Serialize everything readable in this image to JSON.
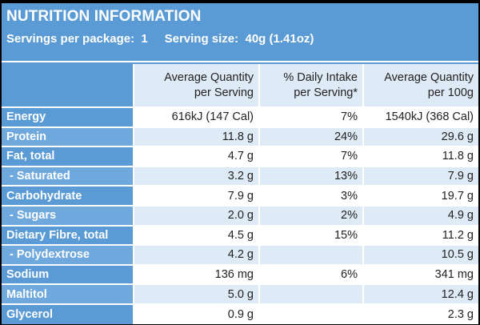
{
  "title": "NUTRITION INFORMATION",
  "servings": {
    "per_package_label": "Servings per package:",
    "per_package_value": "1",
    "size_label": "Serving size:",
    "size_value": "40g (1.41oz)"
  },
  "columns": [
    {
      "line1": "Average Quantity",
      "line2": "per Serving"
    },
    {
      "line1": "% Daily Intake",
      "line2": "per Serving*"
    },
    {
      "line1": "Average Quantity",
      "line2": "per 100g"
    }
  ],
  "rows": [
    {
      "label": "Energy",
      "per_serving": "616kJ (147 Cal)",
      "daily_intake": "7%",
      "per_100g": "1540kJ (368 Cal)"
    },
    {
      "label": "Protein",
      "per_serving": "11.8 g",
      "daily_intake": "24%",
      "per_100g": "29.6 g"
    },
    {
      "label": "Fat, total",
      "per_serving": "4.7 g",
      "daily_intake": "7%",
      "per_100g": "11.8 g"
    },
    {
      "label": " - Saturated",
      "per_serving": "3.2 g",
      "daily_intake": "13%",
      "per_100g": "7.9 g"
    },
    {
      "label": "Carbohydrate",
      "per_serving": "7.9 g",
      "daily_intake": "3%",
      "per_100g": "19.7 g"
    },
    {
      "label": " - Sugars",
      "per_serving": "2.0 g",
      "daily_intake": "2%",
      "per_100g": "4.9 g"
    },
    {
      "label": "Dietary Fibre, total",
      "per_serving": "4.5 g",
      "daily_intake": "15%",
      "per_100g": "11.2 g"
    },
    {
      "label": " - Polydextrose",
      "per_serving": "4.2 g",
      "daily_intake": "",
      "per_100g": "10.5 g"
    },
    {
      "label": "Sodium",
      "per_serving": "136 mg",
      "daily_intake": "6%",
      "per_100g": "341 mg"
    },
    {
      "label": "Maltitol",
      "per_serving": "5.0 g",
      "daily_intake": "",
      "per_100g": "12.4 g"
    },
    {
      "label": "Glycerol",
      "per_serving": "0.9 g",
      "daily_intake": "",
      "per_100g": "2.3 g"
    }
  ],
  "colors": {
    "header_blue": "#5b9bd5",
    "shade_cell": "#deeaf6",
    "light_cell": "#ffffff"
  }
}
